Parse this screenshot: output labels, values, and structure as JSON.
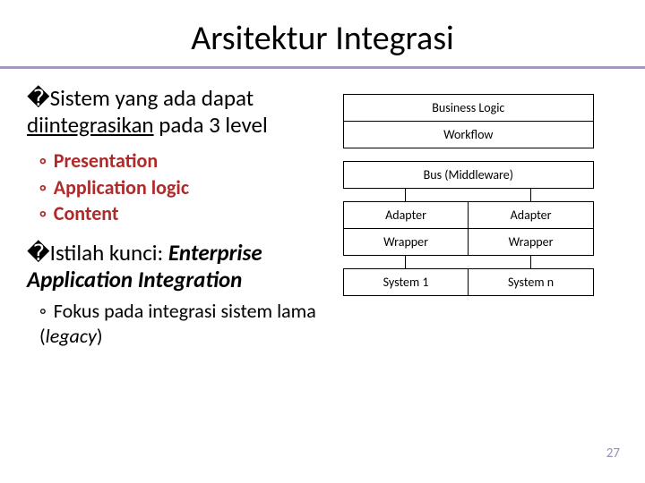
{
  "title": "Arsitektur Integrasi",
  "p1": {
    "prefix": "�",
    "frag1": "Sistem",
    "frag2": " yang ada dapat ",
    "frag3": "diintegrasikan",
    "frag4": " pada 3 level"
  },
  "sublist": [
    "Presentation",
    "Application logic",
    "Content"
  ],
  "p2": {
    "prefix": "�",
    "frag1": "Istilah",
    "frag2": " kunci: ",
    "frag3": "Enterprise Application Integration"
  },
  "sub2": {
    "text1": "Fokus pada integrasi sistem lama (",
    "it": "legacy",
    "text2": ")"
  },
  "pagenum": "27",
  "diagram": {
    "business_logic": "Business Logic",
    "workflow": "Workflow",
    "bus": "Bus (Middleware)",
    "adapter": "Adapter",
    "wrapper": "Wrapper",
    "system1": "System 1",
    "systemn": "System n"
  },
  "colors": {
    "accent_rule": "#a894c2",
    "sub_red": "#b02a2a",
    "pagenum": "#9a8fb0",
    "border": "#000000",
    "bg": "#ffffff"
  }
}
